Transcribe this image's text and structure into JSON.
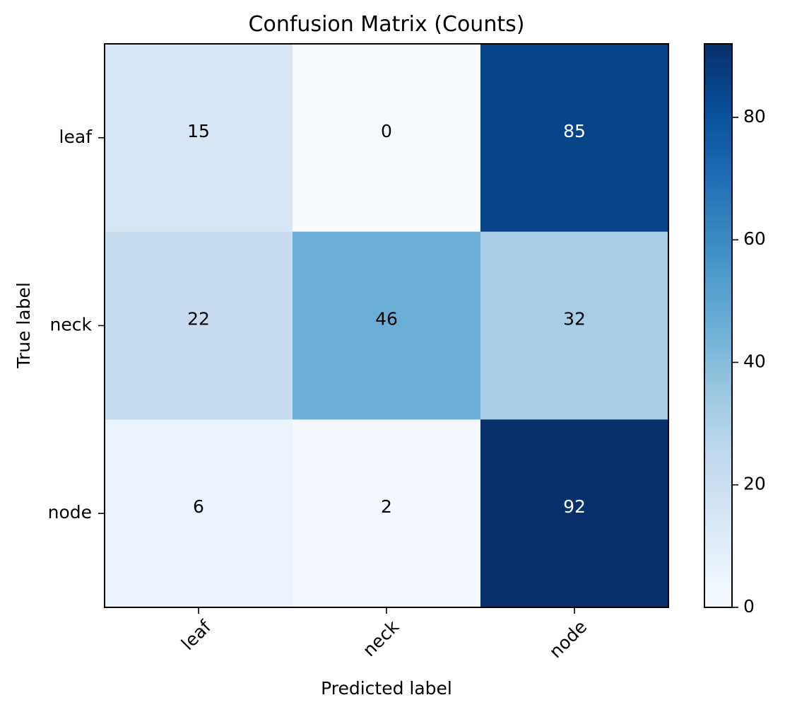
{
  "chart_data": {
    "type": "heatmap",
    "title": "Confusion Matrix (Counts)",
    "xlabel": "Predicted label",
    "ylabel": "True label",
    "x_categories": [
      "leaf",
      "neck",
      "node"
    ],
    "y_categories": [
      "leaf",
      "neck",
      "node"
    ],
    "values": [
      [
        15,
        0,
        85
      ],
      [
        22,
        46,
        32
      ],
      [
        6,
        2,
        92
      ]
    ],
    "colormap": "Blues",
    "color_range": [
      0,
      92
    ],
    "colorbar": {
      "ticks": [
        0,
        20,
        40,
        60,
        80
      ],
      "tick_labels": [
        "0",
        "20",
        "40",
        "60",
        "80"
      ]
    },
    "cell_text_colors": {
      "light": "#ffffff",
      "dark": "#000000"
    },
    "frame_color": "#000000"
  }
}
